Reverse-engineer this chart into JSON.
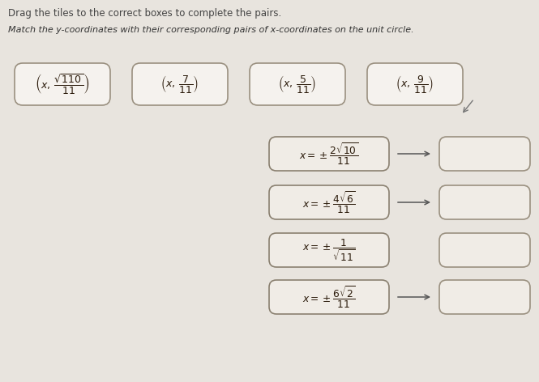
{
  "background_color": "#e8e4de",
  "title1": "Drag the tiles to the correct boxes to complete the pairs.",
  "title2": "Match the y-coordinates with their corresponding pairs of x-coordinates on the unit circle.",
  "top_tiles_math": [
    "$\\left(x,\\, \\dfrac{\\sqrt{110}}{11}\\right)$",
    "$\\left(x,\\, \\dfrac{7}{11}\\right)$",
    "$\\left(x,\\, \\dfrac{5}{11}\\right)$",
    "$\\left(x,\\, \\dfrac{9}{11}\\right)$"
  ],
  "left_boxes_math": [
    "$x = \\pm\\dfrac{2\\sqrt{10}}{11}$",
    "$x = \\pm\\dfrac{4\\sqrt{6}}{11}$",
    "$x = \\pm\\dfrac{1}{\\sqrt{11}}$",
    "$x = \\pm\\dfrac{6\\sqrt{2}}{11}$"
  ],
  "has_arrows": [
    true,
    true,
    false,
    true
  ],
  "box_fill": "#f5f2ee",
  "box_edge": "#9a9080",
  "left_box_fill": "#f0ece6",
  "left_box_edge": "#8a8070",
  "right_box_fill": "#f0ece6",
  "right_box_edge": "#9a9080",
  "arrow_color": "#555555",
  "text_color": "#2a1a0a",
  "title_color": "#444444",
  "title2_color": "#333333"
}
